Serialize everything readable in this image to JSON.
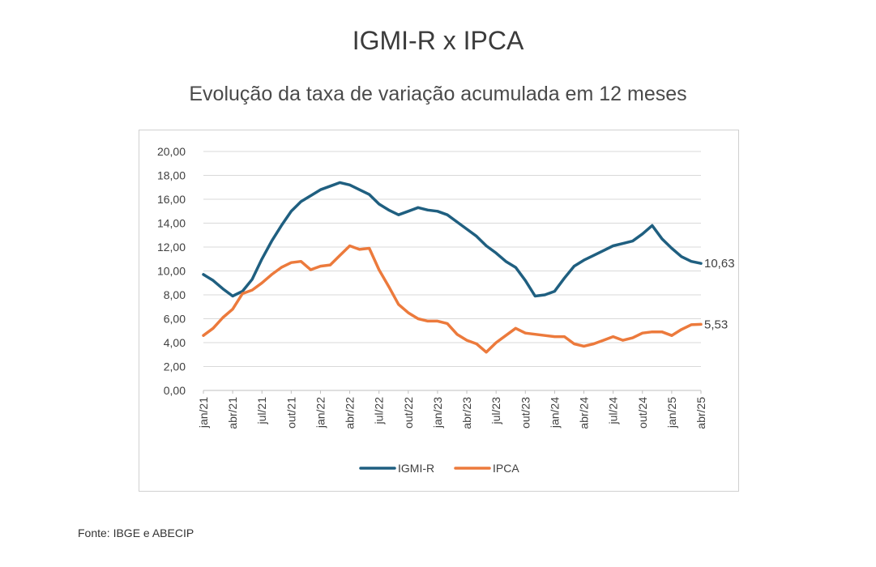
{
  "title": "IGMI-R x IPCA",
  "subtitle": "Evolução da taxa de variação acumulada em 12 meses",
  "source": "Fonte: IBGE e ABECIP",
  "chart_data": {
    "type": "line",
    "title": "IGMI-R x IPCA",
    "subtitle": "Evolução da taxa de variação acumulada em 12 meses",
    "xlabel": "",
    "ylabel": "",
    "ylim": [
      0,
      20
    ],
    "yticks": [
      "0,00",
      "2,00",
      "4,00",
      "6,00",
      "8,00",
      "10,00",
      "12,00",
      "14,00",
      "16,00",
      "18,00",
      "20,00"
    ],
    "x_tick_labels": [
      "jan/21",
      "abr/21",
      "jul/21",
      "out/21",
      "jan/22",
      "abr/22",
      "jul/22",
      "out/22",
      "jan/23",
      "abr/23",
      "jul/23",
      "out/23",
      "jan/24",
      "abr/24",
      "jul/24",
      "out/24",
      "jan/25",
      "abr/25"
    ],
    "x_tick_index": [
      0,
      3,
      6,
      9,
      12,
      15,
      18,
      21,
      24,
      27,
      30,
      33,
      36,
      39,
      42,
      45,
      48,
      51
    ],
    "grid": "horizontal",
    "legend_position": "bottom",
    "series": [
      {
        "name": "IGMI-R",
        "color": "#1f5f80",
        "values": [
          9.7,
          9.2,
          8.5,
          7.9,
          8.3,
          9.3,
          11.0,
          12.5,
          13.8,
          15.0,
          15.8,
          16.3,
          16.8,
          17.1,
          17.4,
          17.2,
          16.8,
          16.4,
          15.6,
          15.1,
          14.7,
          15.0,
          15.3,
          15.1,
          15.0,
          14.7,
          14.1,
          13.5,
          12.9,
          12.1,
          11.5,
          10.8,
          10.3,
          9.2,
          7.9,
          8.0,
          8.3,
          9.4,
          10.4,
          10.9,
          11.3,
          11.7,
          12.1,
          12.3,
          12.5,
          13.1,
          13.8,
          12.7,
          11.9,
          11.2,
          10.8,
          10.63
        ],
        "end_label": "10,63"
      },
      {
        "name": "IPCA",
        "color": "#ec7a3c",
        "values": [
          4.6,
          5.2,
          6.1,
          6.8,
          8.1,
          8.4,
          9.0,
          9.7,
          10.3,
          10.7,
          10.8,
          10.1,
          10.4,
          10.5,
          11.3,
          12.1,
          11.8,
          11.9,
          10.1,
          8.7,
          7.2,
          6.5,
          6.0,
          5.8,
          5.8,
          5.6,
          4.7,
          4.2,
          3.9,
          3.2,
          4.0,
          4.6,
          5.2,
          4.8,
          4.7,
          4.6,
          4.5,
          4.5,
          3.9,
          3.7,
          3.9,
          4.2,
          4.5,
          4.2,
          4.4,
          4.8,
          4.9,
          4.9,
          4.6,
          5.1,
          5.5,
          5.53
        ],
        "end_label": "5,53"
      }
    ]
  }
}
